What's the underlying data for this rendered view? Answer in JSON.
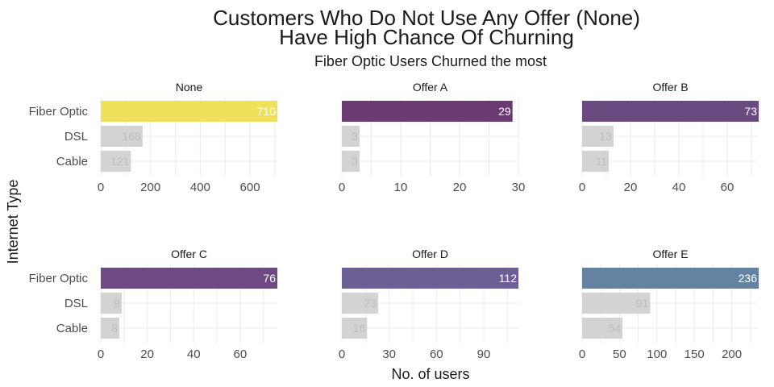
{
  "chart_data": {
    "type": "bar",
    "orientation": "horizontal",
    "title": "Customers Who Do Not Use Any Offer (None)\nHave High Chance Of Churning",
    "title_lines": [
      "Customers Who Do Not Use Any Offer (None)",
      "Have High Chance Of Churning"
    ],
    "subtitle": "Fiber Optic Users Churned the most",
    "xlabel": "No. of users",
    "ylabel": "Internet Type",
    "categories": [
      "Fiber Optic",
      "DSL",
      "Cable"
    ],
    "grid": true,
    "legend": "none",
    "colors": {
      "highlight_none": "#f0e05a",
      "offer_a": "#6b3a73",
      "offer_b": "#6b4a82",
      "offer_c": "#6e4a85",
      "offer_d": "#6d5f96",
      "offer_e": "#6483a3",
      "other_bar": "#d3d3d3",
      "text_dark": "#1a1a1a",
      "axis_text": "#4d4d4d",
      "grid": "#ebebeb",
      "label_on_colored": "#ffffff",
      "label_on_gray": "#bdbdbd"
    },
    "panels": [
      {
        "name": "None",
        "values": [
          710,
          168,
          121
        ],
        "xlim": [
          0,
          710
        ],
        "xticks": [
          0,
          200,
          400,
          600
        ],
        "color_key": "highlight_none"
      },
      {
        "name": "Offer A",
        "values": [
          29,
          3,
          3
        ],
        "xlim": [
          0,
          30
        ],
        "xticks": [
          0,
          10,
          20,
          30
        ],
        "color_key": "offer_a"
      },
      {
        "name": "Offer B",
        "values": [
          73,
          13,
          11
        ],
        "xlim": [
          0,
          73
        ],
        "xticks": [
          0,
          20,
          40,
          60
        ],
        "color_key": "offer_b"
      },
      {
        "name": "Offer C",
        "values": [
          76,
          9,
          8
        ],
        "xlim": [
          0,
          76
        ],
        "xticks": [
          0,
          20,
          40,
          60
        ],
        "color_key": "offer_c"
      },
      {
        "name": "Offer D",
        "values": [
          112,
          23,
          16
        ],
        "xlim": [
          0,
          112
        ],
        "xticks": [
          0,
          30,
          60,
          90
        ],
        "color_key": "offer_d"
      },
      {
        "name": "Offer E",
        "values": [
          236,
          91,
          54
        ],
        "xlim": [
          0,
          236
        ],
        "xticks": [
          0,
          50,
          100,
          150,
          200
        ],
        "color_key": "offer_e"
      }
    ]
  }
}
